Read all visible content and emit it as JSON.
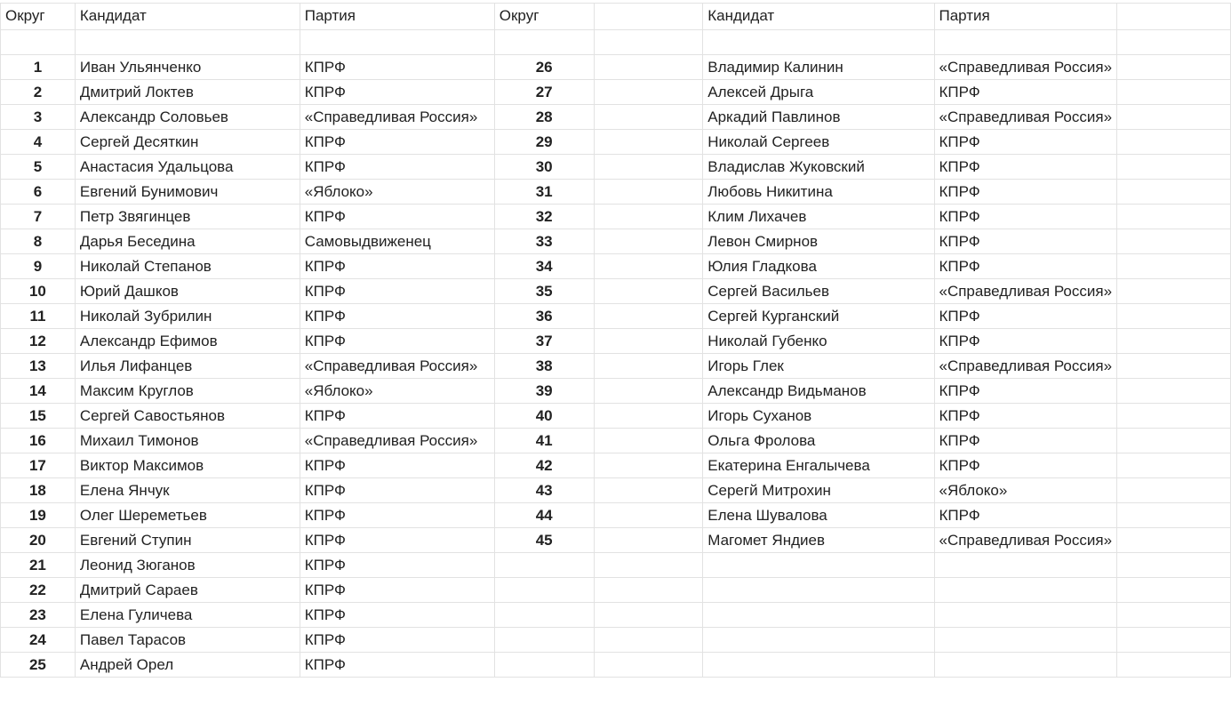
{
  "headers": {
    "district": "Округ",
    "candidate": "Кандидат",
    "party": "Партия"
  },
  "left": [
    {
      "n": "1",
      "name": "Иван Ульянченко",
      "party": "КПРФ"
    },
    {
      "n": "2",
      "name": "Дмитрий Локтев",
      "party": "КПРФ"
    },
    {
      "n": "3",
      "name": "Александр Соловьев",
      "party": "«Справедливая Россия»"
    },
    {
      "n": "4",
      "name": "Сергей Десяткин",
      "party": "КПРФ"
    },
    {
      "n": "5",
      "name": "Анастасия Удальцова",
      "party": "КПРФ"
    },
    {
      "n": "6",
      "name": "Евгений Бунимович",
      "party": "«Яблоко»"
    },
    {
      "n": "7",
      "name": "Петр Звягинцев",
      "party": "КПРФ"
    },
    {
      "n": "8",
      "name": "Дарья Беседина",
      "party": "Самовыдвиженец"
    },
    {
      "n": "9",
      "name": "Николай Степанов",
      "party": "КПРФ"
    },
    {
      "n": "10",
      "name": "Юрий Дашков",
      "party": "КПРФ"
    },
    {
      "n": "11",
      "name": "Николай Зубрилин",
      "party": "КПРФ"
    },
    {
      "n": "12",
      "name": "Александр Ефимов",
      "party": "КПРФ"
    },
    {
      "n": "13",
      "name": "Илья Лифанцев",
      "party": "«Справедливая Россия»"
    },
    {
      "n": "14",
      "name": "Максим Круглов",
      "party": "«Яблоко»"
    },
    {
      "n": "15",
      "name": "Сергей Савостьянов",
      "party": "КПРФ"
    },
    {
      "n": "16",
      "name": "Михаил Тимонов",
      "party": "«Справедливая Россия»"
    },
    {
      "n": "17",
      "name": "Виктор Максимов",
      "party": "КПРФ"
    },
    {
      "n": "18",
      "name": "Елена Янчук",
      "party": "КПРФ"
    },
    {
      "n": "19",
      "name": "Олег Шереметьев",
      "party": "КПРФ"
    },
    {
      "n": "20",
      "name": "Евгений Ступин",
      "party": "КПРФ"
    },
    {
      "n": "21",
      "name": "Леонид Зюганов",
      "party": "КПРФ"
    },
    {
      "n": "22",
      "name": "Дмитрий Сараев",
      "party": "КПРФ"
    },
    {
      "n": "23",
      "name": "Елена Гуличева",
      "party": "КПРФ"
    },
    {
      "n": "24",
      "name": "Павел Тарасов",
      "party": "КПРФ"
    },
    {
      "n": "25",
      "name": "Андрей Орел",
      "party": "КПРФ"
    }
  ],
  "right": [
    {
      "n": "26",
      "name": "Владимир Калинин",
      "party": "«Справедливая Россия»"
    },
    {
      "n": "27",
      "name": "Алексей Дрыга",
      "party": "КПРФ"
    },
    {
      "n": "28",
      "name": "Аркадий Павлинов",
      "party": "«Справедливая Россия»"
    },
    {
      "n": "29",
      "name": "Николай Сергеев",
      "party": "КПРФ"
    },
    {
      "n": "30",
      "name": "Владислав Жуковский",
      "party": "КПРФ"
    },
    {
      "n": "31",
      "name": "Любовь Никитина",
      "party": "КПРФ"
    },
    {
      "n": "32",
      "name": "Клим Лихачев",
      "party": "КПРФ"
    },
    {
      "n": "33",
      "name": "Левон Смирнов",
      "party": "КПРФ"
    },
    {
      "n": "34",
      "name": "Юлия Гладкова",
      "party": "КПРФ"
    },
    {
      "n": "35",
      "name": "Сергей Васильев",
      "party": "«Справедливая Россия»"
    },
    {
      "n": "36",
      "name": "Сергей Курганский",
      "party": "КПРФ"
    },
    {
      "n": "37",
      "name": "Николай Губенко",
      "party": "КПРФ"
    },
    {
      "n": "38",
      "name": "Игорь Глек",
      "party": "«Справедливая Россия»"
    },
    {
      "n": "39",
      "name": "Александр Видьманов",
      "party": "КПРФ"
    },
    {
      "n": "40",
      "name": "Игорь Суханов",
      "party": "КПРФ"
    },
    {
      "n": "41",
      "name": "Ольга Фролова",
      "party": "КПРФ"
    },
    {
      "n": "42",
      "name": "Екатерина Енгалычева",
      "party": "КПРФ"
    },
    {
      "n": "43",
      "name": "Серегй Митрохин",
      "party": "«Яблоко»"
    },
    {
      "n": "44",
      "name": "Елена Шувалова",
      "party": "КПРФ"
    },
    {
      "n": "45",
      "name": "Магомет Яндиев",
      "party": "«Справедливая Россия»"
    }
  ]
}
